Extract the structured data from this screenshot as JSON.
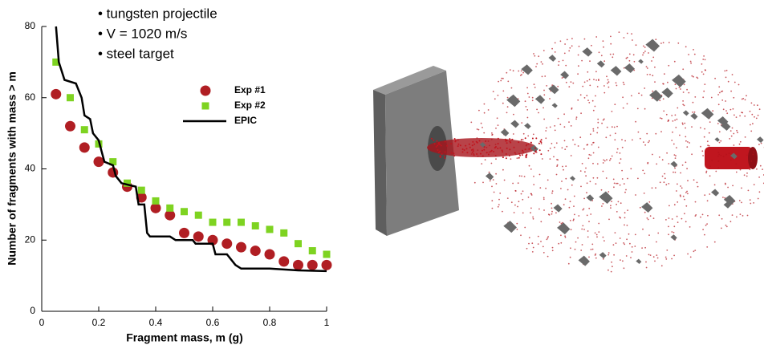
{
  "chart_data": {
    "type": "scatter-line",
    "annotations": [
      "• tungsten projectile",
      "• V = 1020 m/s",
      "• steel target"
    ],
    "x_label": "Fragment mass, m (g)",
    "y_label": "Number of fragments with mass > m",
    "xlim": [
      0,
      1
    ],
    "xticks": [
      0,
      0.2,
      0.4,
      0.6,
      0.8,
      1
    ],
    "ylim": [
      0,
      80
    ],
    "yticks": [
      0,
      20,
      40,
      60,
      80
    ],
    "series": [
      {
        "name": "Exp #1",
        "color": "#b01e23",
        "marker": "circle",
        "x": [
          0.05,
          0.1,
          0.15,
          0.2,
          0.25,
          0.3,
          0.35,
          0.4,
          0.45,
          0.5,
          0.55,
          0.6,
          0.65,
          0.7,
          0.75,
          0.8,
          0.85,
          0.9,
          0.95,
          1
        ],
        "values": [
          61,
          52,
          46,
          42,
          39,
          35,
          32,
          29,
          27,
          22,
          21,
          20,
          19,
          18,
          17,
          16,
          14,
          13,
          13,
          13
        ]
      },
      {
        "name": "Exp #2",
        "color": "#7ed321",
        "marker": "square",
        "x": [
          0.05,
          0.1,
          0.15,
          0.2,
          0.25,
          0.3,
          0.35,
          0.4,
          0.45,
          0.5,
          0.55,
          0.6,
          0.65,
          0.7,
          0.75,
          0.8,
          0.85,
          0.9,
          0.95,
          1
        ],
        "values": [
          70,
          60,
          51,
          47,
          42,
          36,
          34,
          31,
          29,
          28,
          27,
          25,
          25,
          25,
          24,
          23,
          22,
          19,
          17,
          16
        ]
      },
      {
        "name": "EPIC",
        "color": "#000000",
        "marker": "line",
        "x": [
          0.05,
          0.06,
          0.08,
          0.12,
          0.14,
          0.15,
          0.17,
          0.18,
          0.2,
          0.21,
          0.22,
          0.25,
          0.26,
          0.28,
          0.33,
          0.34,
          0.36,
          0.37,
          0.38,
          0.45,
          0.47,
          0.53,
          0.54,
          0.6,
          0.61,
          0.65,
          0.68,
          0.7,
          0.8,
          0.9,
          1
        ],
        "values": [
          80,
          70,
          65,
          64,
          60,
          55,
          54,
          50,
          48,
          45,
          42,
          41,
          38,
          36,
          35,
          30,
          30,
          22,
          21,
          21,
          20,
          20,
          19,
          19,
          16,
          16,
          13,
          12,
          12,
          11.5,
          11.3
        ]
      }
    ]
  }
}
